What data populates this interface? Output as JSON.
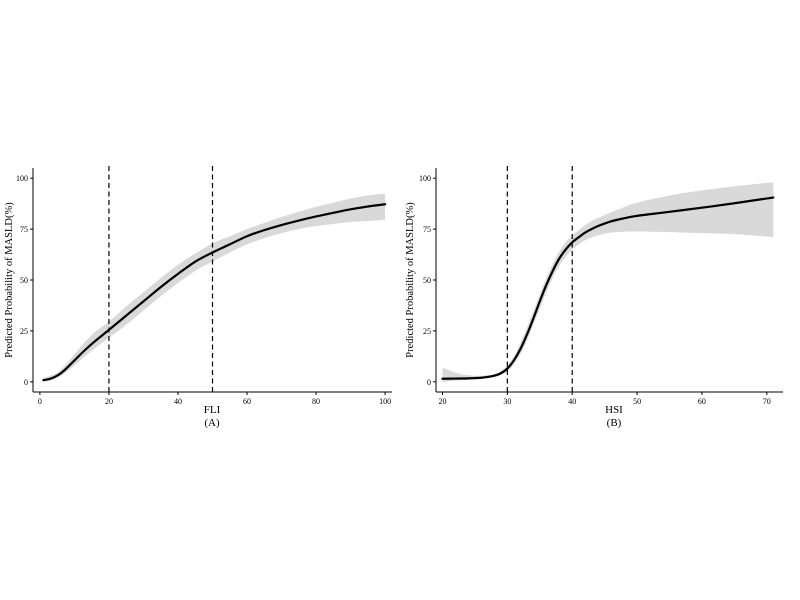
{
  "colors": {
    "line": "#000000",
    "band": "#d9d9d9",
    "axis": "#000000",
    "background": "#ffffff"
  },
  "chart_data": [
    {
      "type": "line",
      "panel_label": "(A)",
      "xlabel": "FLI",
      "ylabel": "Predicted Probability of MASLD(%)",
      "xlim": [
        -2,
        102
      ],
      "ylim": [
        -5,
        105
      ],
      "xticks": [
        0,
        20,
        40,
        60,
        80,
        100
      ],
      "yticks": [
        0,
        25,
        50,
        75,
        100
      ],
      "grid": false,
      "legend": "none",
      "vlines": [
        20,
        50
      ],
      "series": [
        {
          "x": [
            1,
            3,
            5,
            7,
            10,
            13,
            16,
            20,
            25,
            30,
            35,
            40,
            45,
            50,
            55,
            60,
            65,
            70,
            75,
            80,
            85,
            90,
            95,
            100
          ],
          "y": [
            0.8,
            1.5,
            3.0,
            5.5,
            10.5,
            15.5,
            20.0,
            25.5,
            32.5,
            39.5,
            46.5,
            53.0,
            59.0,
            63.5,
            67.5,
            71.5,
            74.5,
            77.0,
            79.2,
            81.2,
            83.0,
            84.7,
            86.1,
            87.2
          ],
          "lower": [
            0.0,
            0.5,
            2.0,
            4.0,
            8.0,
            12.5,
            16.5,
            21.5,
            28.0,
            35.0,
            42.0,
            48.5,
            54.5,
            59.0,
            63.5,
            67.5,
            70.5,
            73.0,
            75.0,
            76.5,
            77.5,
            78.5,
            79.0,
            79.5
          ],
          "upper": [
            2.0,
            3.0,
            4.5,
            7.5,
            13.5,
            19.5,
            24.5,
            29.5,
            37.0,
            44.0,
            51.0,
            57.5,
            63.0,
            68.0,
            71.5,
            75.0,
            78.0,
            81.0,
            83.5,
            86.0,
            88.0,
            90.0,
            91.5,
            92.5
          ]
        }
      ]
    },
    {
      "type": "line",
      "panel_label": "(B)",
      "xlabel": "HSI",
      "ylabel": "Predicted Probability of MASLD(%)",
      "xlim": [
        19,
        72.5
      ],
      "ylim": [
        -5,
        105
      ],
      "xticks": [
        20,
        30,
        40,
        50,
        60,
        70
      ],
      "yticks": [
        0,
        25,
        50,
        75,
        100
      ],
      "grid": false,
      "legend": "none",
      "vlines": [
        30,
        40
      ],
      "series": [
        {
          "x": [
            20,
            22,
            24,
            26,
            28,
            29,
            30,
            31,
            32,
            33,
            34,
            35,
            36,
            37,
            38,
            39,
            40,
            41,
            42,
            43,
            44,
            46,
            48,
            50,
            55,
            60,
            65,
            71
          ],
          "y": [
            1.5,
            1.6,
            1.7,
            2.0,
            3.0,
            4.2,
            6.5,
            10.5,
            16.0,
            23.0,
            31.0,
            39.5,
            47.5,
            54.5,
            60.5,
            65.0,
            68.5,
            71.0,
            73.3,
            75.0,
            76.5,
            78.8,
            80.3,
            81.5,
            83.5,
            85.5,
            87.7,
            90.5
          ],
          "lower": [
            0.0,
            0.5,
            1.0,
            1.5,
            2.3,
            3.3,
            5.0,
            8.5,
            13.5,
            20.0,
            28.0,
            36.0,
            44.0,
            51.0,
            57.0,
            61.5,
            65.0,
            67.5,
            69.5,
            71.0,
            72.0,
            73.3,
            73.7,
            73.8,
            73.5,
            73.0,
            72.5,
            71.0
          ],
          "upper": [
            7.0,
            4.5,
            3.2,
            3.0,
            3.8,
            5.2,
            8.0,
            12.5,
            19.0,
            26.5,
            34.5,
            43.0,
            51.0,
            58.0,
            64.0,
            68.5,
            72.0,
            74.5,
            77.0,
            79.0,
            80.5,
            83.3,
            85.8,
            88.0,
            91.5,
            94.0,
            96.0,
            98.0
          ]
        }
      ]
    }
  ]
}
